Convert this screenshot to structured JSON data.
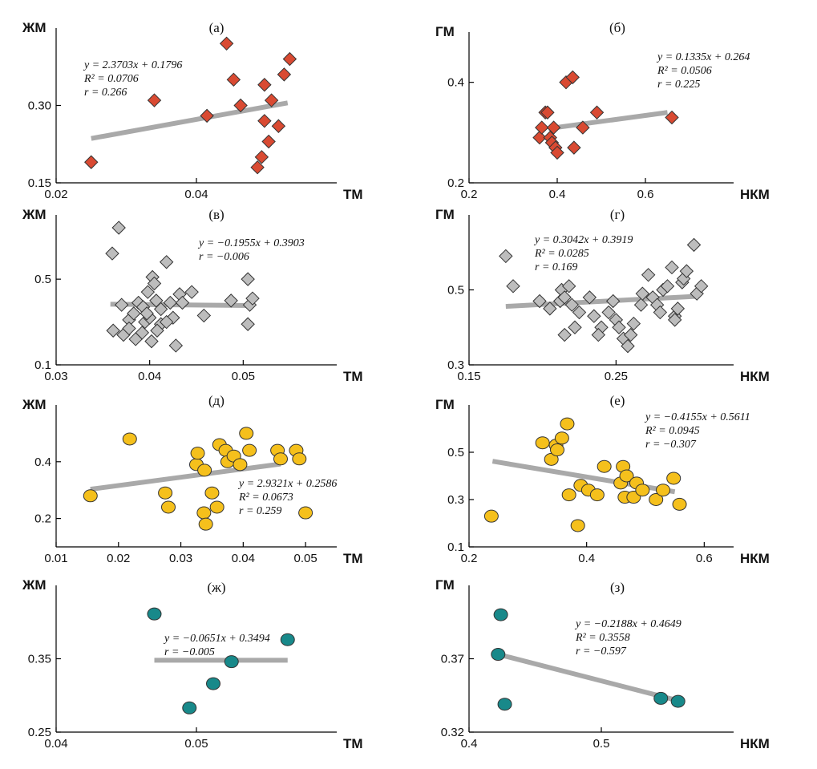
{
  "chart_data": [
    {
      "type": "scatter",
      "title": "(а)",
      "xlabel": "ТМ",
      "ylabel": "ЖМ",
      "xlim": [
        0.02,
        0.06
      ],
      "ylim": [
        0.15,
        0.45
      ],
      "xticks": [
        "0.02",
        "0.04"
      ],
      "yticks": [
        "0.15",
        "0.30"
      ],
      "xtick_values": [
        0.02,
        0.04
      ],
      "ytick_values": [
        0.15,
        0.3
      ],
      "marker": "diamond",
      "color": "#d94a32",
      "points": [
        [
          0.025,
          0.19
        ],
        [
          0.034,
          0.31
        ],
        [
          0.0415,
          0.28
        ],
        [
          0.0443,
          0.42
        ],
        [
          0.0453,
          0.35
        ],
        [
          0.0463,
          0.3
        ],
        [
          0.0487,
          0.18
        ],
        [
          0.0493,
          0.2
        ],
        [
          0.0497,
          0.34
        ],
        [
          0.0497,
          0.27
        ],
        [
          0.0503,
          0.23
        ],
        [
          0.0507,
          0.31
        ],
        [
          0.0517,
          0.26
        ],
        [
          0.0525,
          0.36
        ],
        [
          0.0533,
          0.39
        ]
      ],
      "trend": [
        [
          0.025,
          0.236
        ],
        [
          0.053,
          0.305
        ]
      ],
      "equation": [
        "y = 2.3703x + 0.1796",
        "R² = 0.0706",
        "r = 0.266"
      ],
      "eq_pos": "top-left"
    },
    {
      "type": "scatter",
      "title": "(б)",
      "xlabel": "НКМ",
      "ylabel": "ГМ",
      "xlim": [
        0.2,
        0.8
      ],
      "ylim": [
        0.2,
        0.5
      ],
      "xticks": [
        "0.2",
        "0.4",
        "0.6"
      ],
      "yticks": [
        "0.2",
        "0.4"
      ],
      "xtick_values": [
        0.2,
        0.4,
        0.6
      ],
      "ytick_values": [
        0.2,
        0.4
      ],
      "marker": "diamond",
      "color": "#d94a32",
      "points": [
        [
          0.36,
          0.29
        ],
        [
          0.365,
          0.31
        ],
        [
          0.373,
          0.34
        ],
        [
          0.378,
          0.34
        ],
        [
          0.384,
          0.29
        ],
        [
          0.388,
          0.28
        ],
        [
          0.392,
          0.31
        ],
        [
          0.396,
          0.27
        ],
        [
          0.4,
          0.26
        ],
        [
          0.42,
          0.4
        ],
        [
          0.435,
          0.41
        ],
        [
          0.438,
          0.27
        ],
        [
          0.458,
          0.31
        ],
        [
          0.49,
          0.34
        ],
        [
          0.66,
          0.33
        ]
      ],
      "trend": [
        [
          0.38,
          0.308
        ],
        [
          0.65,
          0.34
        ]
      ],
      "equation": [
        "y = 0.1335x + 0.264",
        "R² = 0.0506",
        "r = 0.225"
      ],
      "eq_pos": "top-right"
    },
    {
      "type": "scatter",
      "title": "(в)",
      "xlabel": "ТМ",
      "ylabel": "ЖМ",
      "xlim": [
        0.03,
        0.06
      ],
      "ylim": [
        0.1,
        0.8
      ],
      "xticks": [
        "0.03",
        "0.04",
        "0.05"
      ],
      "yticks": [
        "0.1",
        "0.5"
      ],
      "xtick_values": [
        0.03,
        0.04,
        0.05
      ],
      "ytick_values": [
        0.1,
        0.5
      ],
      "marker": "diamond",
      "color": "#bdbdbd",
      "points": [
        [
          0.0367,
          0.74
        ],
        [
          0.036,
          0.62
        ],
        [
          0.0418,
          0.58
        ],
        [
          0.0403,
          0.51
        ],
        [
          0.0405,
          0.48
        ],
        [
          0.0398,
          0.44
        ],
        [
          0.0445,
          0.44
        ],
        [
          0.0432,
          0.43
        ],
        [
          0.037,
          0.38
        ],
        [
          0.0388,
          0.39
        ],
        [
          0.0393,
          0.37
        ],
        [
          0.0407,
          0.4
        ],
        [
          0.0412,
          0.36
        ],
        [
          0.0422,
          0.39
        ],
        [
          0.0435,
          0.39
        ],
        [
          0.0487,
          0.4
        ],
        [
          0.0505,
          0.5
        ],
        [
          0.0507,
          0.38
        ],
        [
          0.051,
          0.41
        ],
        [
          0.0378,
          0.31
        ],
        [
          0.0395,
          0.3
        ],
        [
          0.04,
          0.32
        ],
        [
          0.0412,
          0.29
        ],
        [
          0.0425,
          0.32
        ],
        [
          0.0383,
          0.34
        ],
        [
          0.0397,
          0.34
        ],
        [
          0.0361,
          0.26
        ],
        [
          0.0372,
          0.24
        ],
        [
          0.0378,
          0.27
        ],
        [
          0.0385,
          0.22
        ],
        [
          0.0392,
          0.25
        ],
        [
          0.0402,
          0.21
        ],
        [
          0.0408,
          0.26
        ],
        [
          0.0418,
          0.3
        ],
        [
          0.0428,
          0.19
        ],
        [
          0.0458,
          0.33
        ],
        [
          0.0505,
          0.29
        ]
      ],
      "trend": [
        [
          0.0358,
          0.383
        ],
        [
          0.051,
          0.377
        ]
      ],
      "equation": [
        "y = −0.1955x + 0.3903",
        "r = −0.006"
      ],
      "eq_pos": "top-right"
    },
    {
      "type": "scatter",
      "title": "(г)",
      "xlabel": "НКМ",
      "ylabel": "ГМ",
      "xlim": [
        0.15,
        0.33
      ],
      "ylim": [
        0.3,
        0.7
      ],
      "xticks": [
        "0.15",
        "0.25"
      ],
      "yticks": [
        "0.3",
        "0.5"
      ],
      "xtick_values": [
        0.15,
        0.25
      ],
      "ytick_values": [
        0.3,
        0.5
      ],
      "marker": "diamond",
      "color": "#bdbdbd",
      "points": [
        [
          0.175,
          0.59
        ],
        [
          0.18,
          0.51
        ],
        [
          0.198,
          0.47
        ],
        [
          0.205,
          0.45
        ],
        [
          0.212,
          0.47
        ],
        [
          0.213,
          0.5
        ],
        [
          0.215,
          0.48
        ],
        [
          0.218,
          0.51
        ],
        [
          0.22,
          0.46
        ],
        [
          0.222,
          0.4
        ],
        [
          0.225,
          0.44
        ],
        [
          0.232,
          0.48
        ],
        [
          0.235,
          0.43
        ],
        [
          0.24,
          0.4
        ],
        [
          0.245,
          0.44
        ],
        [
          0.248,
          0.47
        ],
        [
          0.25,
          0.42
        ],
        [
          0.252,
          0.4
        ],
        [
          0.255,
          0.37
        ],
        [
          0.258,
          0.35
        ],
        [
          0.262,
          0.41
        ],
        [
          0.267,
          0.46
        ],
        [
          0.268,
          0.49
        ],
        [
          0.272,
          0.54
        ],
        [
          0.275,
          0.48
        ],
        [
          0.278,
          0.46
        ],
        [
          0.28,
          0.44
        ],
        [
          0.282,
          0.5
        ],
        [
          0.285,
          0.51
        ],
        [
          0.288,
          0.56
        ],
        [
          0.29,
          0.43
        ],
        [
          0.292,
          0.45
        ],
        [
          0.295,
          0.52
        ],
        [
          0.296,
          0.53
        ],
        [
          0.298,
          0.55
        ],
        [
          0.303,
          0.62
        ],
        [
          0.305,
          0.49
        ],
        [
          0.308,
          0.51
        ],
        [
          0.215,
          0.38
        ],
        [
          0.238,
          0.38
        ],
        [
          0.26,
          0.38
        ],
        [
          0.29,
          0.42
        ]
      ],
      "trend": [
        [
          0.175,
          0.456
        ],
        [
          0.305,
          0.483
        ]
      ],
      "equation": [
        "y = 0.3042x + 0.3919",
        "R² = 0.0285",
        "r = 0.169"
      ],
      "eq_pos": "top-center"
    },
    {
      "type": "scatter",
      "title": "(д)",
      "xlabel": "ТМ",
      "ylabel": "ЖМ",
      "xlim": [
        0.01,
        0.055
      ],
      "ylim": [
        0.1,
        0.6
      ],
      "xticks": [
        "0.01",
        "0.02",
        "0.03",
        "0.04",
        "0.05"
      ],
      "yticks": [
        "0.2",
        "0.4"
      ],
      "xtick_values": [
        0.01,
        0.02,
        0.03,
        0.04,
        0.05
      ],
      "ytick_values": [
        0.2,
        0.4
      ],
      "marker": "circle",
      "color": "#f5c01c",
      "points": [
        [
          0.0155,
          0.28
        ],
        [
          0.0218,
          0.48
        ],
        [
          0.0275,
          0.29
        ],
        [
          0.028,
          0.24
        ],
        [
          0.0325,
          0.39
        ],
        [
          0.0327,
          0.43
        ],
        [
          0.0338,
          0.37
        ],
        [
          0.0337,
          0.22
        ],
        [
          0.034,
          0.18
        ],
        [
          0.035,
          0.29
        ],
        [
          0.0358,
          0.24
        ],
        [
          0.0362,
          0.46
        ],
        [
          0.0372,
          0.44
        ],
        [
          0.0375,
          0.4
        ],
        [
          0.0385,
          0.42
        ],
        [
          0.0395,
          0.39
        ],
        [
          0.0405,
          0.5
        ],
        [
          0.041,
          0.44
        ],
        [
          0.0455,
          0.44
        ],
        [
          0.046,
          0.41
        ],
        [
          0.0485,
          0.44
        ],
        [
          0.049,
          0.41
        ],
        [
          0.05,
          0.22
        ]
      ],
      "trend": [
        [
          0.0155,
          0.303
        ],
        [
          0.046,
          0.392
        ]
      ],
      "equation": [
        "y = 2.9321x + 0.2586",
        "R² = 0.0673",
        "r = 0.259"
      ],
      "eq_pos": "middle-right"
    },
    {
      "type": "scatter",
      "title": "(е)",
      "xlabel": "НКМ",
      "ylabel": "ГМ",
      "xlim": [
        0.2,
        0.65
      ],
      "ylim": [
        0.1,
        0.7
      ],
      "xticks": [
        "0.2",
        "0.4",
        "0.6"
      ],
      "yticks": [
        "0.1",
        "0.3",
        "0.5"
      ],
      "xtick_values": [
        0.2,
        0.4,
        0.6
      ],
      "ytick_values": [
        0.1,
        0.3,
        0.5
      ],
      "marker": "circle",
      "color": "#f5c01c",
      "points": [
        [
          0.238,
          0.23
        ],
        [
          0.325,
          0.54
        ],
        [
          0.34,
          0.47
        ],
        [
          0.348,
          0.53
        ],
        [
          0.35,
          0.51
        ],
        [
          0.358,
          0.56
        ],
        [
          0.367,
          0.62
        ],
        [
          0.37,
          0.32
        ],
        [
          0.385,
          0.19
        ],
        [
          0.39,
          0.36
        ],
        [
          0.403,
          0.34
        ],
        [
          0.418,
          0.32
        ],
        [
          0.43,
          0.44
        ],
        [
          0.458,
          0.37
        ],
        [
          0.462,
          0.44
        ],
        [
          0.465,
          0.31
        ],
        [
          0.468,
          0.4
        ],
        [
          0.48,
          0.31
        ],
        [
          0.485,
          0.37
        ],
        [
          0.495,
          0.34
        ],
        [
          0.518,
          0.3
        ],
        [
          0.53,
          0.34
        ],
        [
          0.548,
          0.39
        ],
        [
          0.558,
          0.28
        ]
      ],
      "trend": [
        [
          0.24,
          0.462
        ],
        [
          0.55,
          0.333
        ]
      ],
      "equation": [
        "y = −0.4155x + 0.5611",
        "R² = 0.0945",
        "r = −0.307"
      ],
      "eq_pos": "top-right"
    },
    {
      "type": "scatter",
      "title": "(ж)",
      "xlabel": "ТМ",
      "ylabel": "ЖМ",
      "xlim": [
        0.04,
        0.06
      ],
      "ylim": [
        0.25,
        0.45
      ],
      "xticks": [
        "0.04",
        "0.05"
      ],
      "yticks": [
        "0.25",
        "0.35"
      ],
      "xtick_values": [
        0.04,
        0.05
      ],
      "ytick_values": [
        0.25,
        0.35
      ],
      "marker": "circle",
      "color": "#18898a",
      "points": [
        [
          0.047,
          0.411
        ],
        [
          0.0495,
          0.283
        ],
        [
          0.0512,
          0.316
        ],
        [
          0.0525,
          0.346
        ],
        [
          0.0565,
          0.376
        ]
      ],
      "trend": [
        [
          0.047,
          0.348
        ],
        [
          0.0565,
          0.348
        ]
      ],
      "equation": [
        "y = −0.0651x + 0.3494",
        "r = −0.005"
      ],
      "eq_pos": "top-center"
    },
    {
      "type": "scatter",
      "title": "(з)",
      "xlabel": "НКМ",
      "ylabel": "ГМ",
      "xlim": [
        0.4,
        0.6
      ],
      "ylim": [
        0.32,
        0.42
      ],
      "xticks": [
        "0.4",
        "0.5"
      ],
      "yticks": [
        "0.32",
        "0.37"
      ],
      "xtick_values": [
        0.4,
        0.5
      ],
      "ytick_values": [
        0.32,
        0.37
      ],
      "marker": "circle",
      "color": "#18898a",
      "points": [
        [
          0.424,
          0.4
        ],
        [
          0.422,
          0.373
        ],
        [
          0.427,
          0.339
        ],
        [
          0.545,
          0.343
        ],
        [
          0.558,
          0.341
        ]
      ],
      "trend": [
        [
          0.422,
          0.373
        ],
        [
          0.56,
          0.341
        ]
      ],
      "equation": [
        "y = −0.2188x + 0.4649",
        "R² = 0.3558",
        "r = −0.597"
      ],
      "eq_pos": "top-right"
    }
  ]
}
